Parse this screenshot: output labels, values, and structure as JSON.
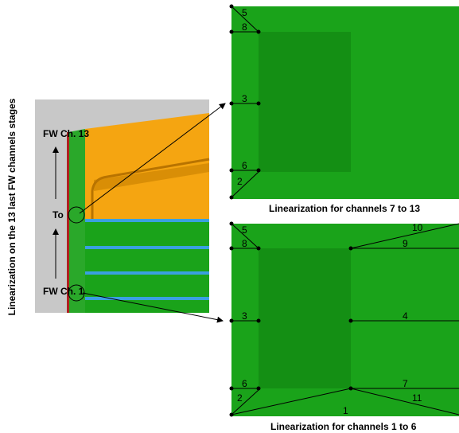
{
  "left_label": "Linearization on the 13 last FW channels stages",
  "model": {
    "top_label": "FW Ch. 13",
    "mid_label": "To",
    "bottom_label": "FW Ch. 1"
  },
  "top_panel": {
    "caption": "Linearization for channels 7 to 13",
    "numbers": [
      "5",
      "8",
      "3",
      "6",
      "2"
    ]
  },
  "bottom_panel": {
    "caption": "Linearization for channels 1 to 6",
    "numbers": [
      "5",
      "8",
      "10",
      "9",
      "3",
      "4",
      "6",
      "7",
      "11",
      "2",
      "1"
    ]
  }
}
